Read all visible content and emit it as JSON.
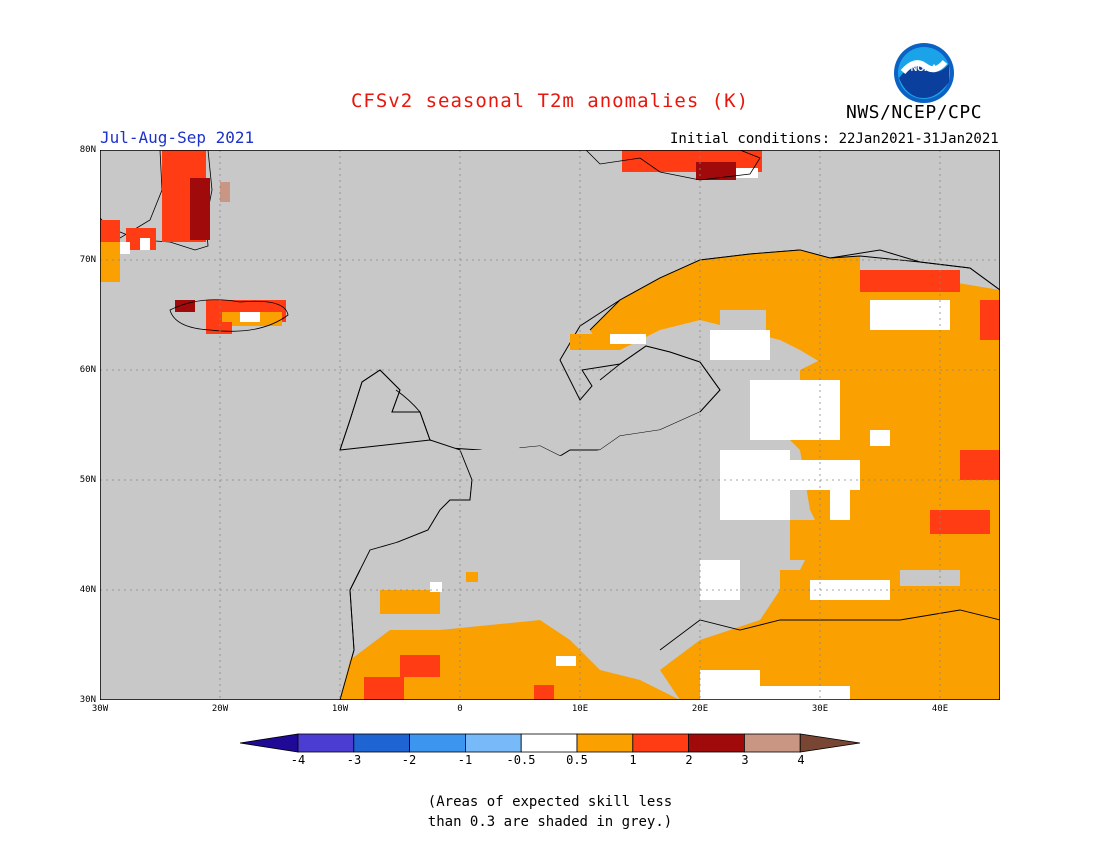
{
  "title": "CFSv2 seasonal T2m anomalies (K)",
  "season": "Jul-Aug-Sep 2021",
  "initial_conditions": "Initial conditions: 22Jan2021-31Jan2021",
  "agency": "NWS/NCEP/CPC",
  "logo_text": "NOAA",
  "logo_icon": "noaa-logo-icon",
  "colors": {
    "title": "#e8160c",
    "season": "#1c32c8",
    "ocean": "#c8c8c8",
    "coast": "#000000"
  },
  "map": {
    "lat_labels": [
      "80N",
      "70N",
      "60N",
      "50N",
      "40N",
      "30N"
    ],
    "lon_labels": [
      "30W",
      "20W",
      "10W",
      "0",
      "10E",
      "20E",
      "30E",
      "40E"
    ]
  },
  "colorbar": {
    "labels": [
      "-4",
      "-3",
      "-2",
      "-1",
      "-0.5",
      "0.5",
      "1",
      "2",
      "3",
      "4"
    ],
    "colors": [
      "#1e0a96",
      "#4b3cd2",
      "#1e64d2",
      "#3c96f0",
      "#78b9fa",
      "#ffffff",
      "#faa000",
      "#ff3c14",
      "#a00a0a",
      "#c89682",
      "#784632"
    ]
  },
  "note_lines": [
    "(Areas of expected skill less",
    "than 0.3 are shaded in grey.)"
  ]
}
